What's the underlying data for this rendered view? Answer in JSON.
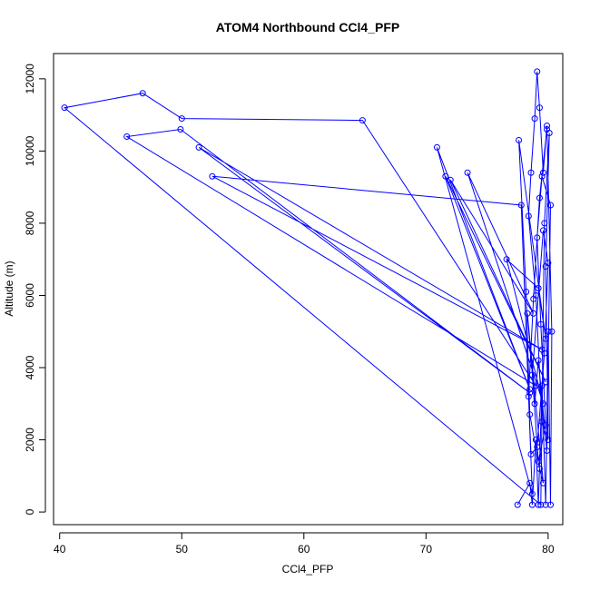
{
  "chart_data": {
    "type": "line",
    "title": "ATOM4 Northbound CCl4_PFP",
    "xlabel": "CCl4_PFP",
    "ylabel": "Altitude (m)",
    "xlim": [
      39.5,
      81.2
    ],
    "ylim": [
      -350,
      12700
    ],
    "xticks": [
      40,
      50,
      60,
      70,
      80
    ],
    "yticks": [
      0,
      2000,
      4000,
      6000,
      8000,
      10000,
      12000
    ],
    "series": [
      {
        "color": "#0000ff",
        "marker": "open-circle",
        "points": [
          [
            77.5,
            200
          ],
          [
            78.5,
            800
          ],
          [
            78.7,
            200
          ],
          [
            79.0,
            2000
          ],
          [
            79.2,
            200
          ],
          [
            79.5,
            3500
          ],
          [
            79.8,
            200
          ],
          [
            80.0,
            5000
          ],
          [
            80.2,
            200
          ],
          [
            80.3,
            5000
          ],
          [
            79.9,
            10700
          ],
          [
            79.6,
            9400
          ],
          [
            79.3,
            11200
          ],
          [
            79.1,
            12200
          ],
          [
            78.9,
            10900
          ],
          [
            78.6,
            9400
          ],
          [
            78.4,
            8200
          ],
          [
            79.0,
            6000
          ],
          [
            79.5,
            2500
          ],
          [
            80.0,
            2000
          ],
          [
            79.8,
            6800
          ],
          [
            80.1,
            10500
          ],
          [
            79.7,
            8000
          ],
          [
            79.4,
            200
          ],
          [
            40.4,
            11200
          ],
          [
            46.8,
            11600
          ],
          [
            50.0,
            10900
          ],
          [
            64.8,
            10850
          ],
          [
            79.0,
            3500
          ],
          [
            45.5,
            10400
          ],
          [
            49.9,
            10600
          ],
          [
            78.5,
            3300
          ],
          [
            51.4,
            10100
          ],
          [
            79.5,
            4500
          ],
          [
            52.5,
            9300
          ],
          [
            77.8,
            8500
          ],
          [
            78.7,
            500
          ],
          [
            70.9,
            10100
          ],
          [
            78.5,
            3400
          ],
          [
            71.6,
            9300
          ],
          [
            79.8,
            3600
          ],
          [
            72.0,
            9200
          ],
          [
            78.8,
            5500
          ],
          [
            73.4,
            9400
          ],
          [
            79.6,
            3000
          ],
          [
            76.6,
            7000
          ],
          [
            79.2,
            6200
          ],
          [
            79.8,
            4800
          ],
          [
            77.6,
            10300
          ],
          [
            78.2,
            6100
          ],
          [
            78.5,
            2700
          ],
          [
            79.3,
            1200
          ],
          [
            79.6,
            800
          ],
          [
            78.3,
            5500
          ],
          [
            78.9,
            3000
          ],
          [
            79.2,
            4200
          ],
          [
            79.9,
            1700
          ],
          [
            80.2,
            8500
          ],
          [
            79.5,
            9300
          ],
          [
            79.1,
            7600
          ],
          [
            79.4,
            5200
          ],
          [
            79.8,
            2400
          ],
          [
            79.2,
            1400
          ],
          [
            78.7,
            3800
          ],
          [
            79.6,
            7800
          ],
          [
            80.0,
            6900
          ],
          [
            79.7,
            4400
          ],
          [
            79.1,
            1800
          ],
          [
            78.6,
            1600
          ],
          [
            78.4,
            3200
          ],
          [
            78.8,
            5900
          ],
          [
            79.3,
            8700
          ],
          [
            79.9,
            10600
          ]
        ]
      }
    ]
  }
}
